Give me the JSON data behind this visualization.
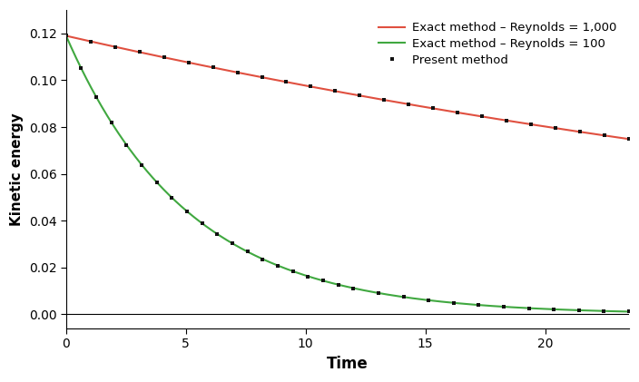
{
  "title": "",
  "xlabel": "Time",
  "ylabel": "Kinetic energy",
  "xlim": [
    0,
    23.5
  ],
  "ylim": [
    -0.006,
    0.13
  ],
  "yticks": [
    0,
    0.02,
    0.04,
    0.06,
    0.08,
    0.1,
    0.12
  ],
  "xticks": [
    0,
    5,
    10,
    15,
    20
  ],
  "KE0": 0.119,
  "Re1000_decay_factor": 0.0197,
  "Re100_decay_factor": 0.197,
  "line_color_Re1000": "#e05040",
  "line_color_Re100": "#40a840",
  "dot_color": "#111111",
  "legend_Re1000": "Exact method – Reynolds = 1,000",
  "legend_Re100": "Exact method – Reynolds = 100",
  "legend_dots": "Present method",
  "n_dots_Re1000": 24,
  "n_dots_Re100": 20,
  "t_max_dots_Re100": 12.0,
  "background_color": "#ffffff",
  "figsize": [
    7.04,
    4.21
  ],
  "dpi": 100
}
